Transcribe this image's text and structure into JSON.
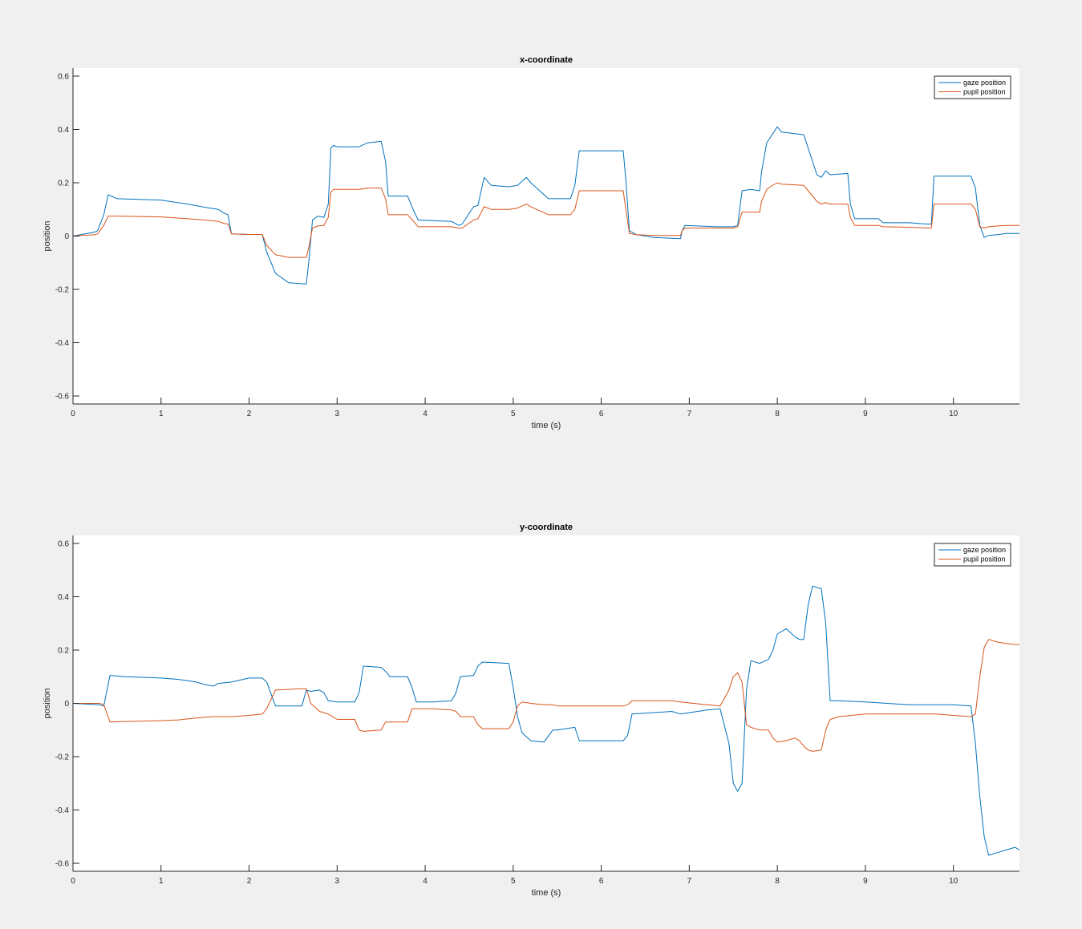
{
  "chart_data": [
    {
      "type": "line",
      "title": "x-coordinate",
      "xlabel": "time (s)",
      "ylabel": "position",
      "xlim": [
        0,
        10.75
      ],
      "ylim": [
        -0.63,
        0.63
      ],
      "xticks": [
        0,
        1,
        2,
        3,
        4,
        5,
        6,
        7,
        8,
        9,
        10
      ],
      "yticks": [
        -0.6,
        -0.4,
        -0.2,
        0,
        0.2,
        0.4,
        0.6
      ],
      "grid": false,
      "legend_position": "top-right",
      "series": [
        {
          "name": "gaze position",
          "color": "#0072bd",
          "x": [
            0,
            0.25,
            0.28,
            0.35,
            0.4,
            0.5,
            1.0,
            1.3,
            1.5,
            1.65,
            1.72,
            1.76,
            1.8,
            2.0,
            2.15,
            2.2,
            2.3,
            2.45,
            2.65,
            2.68,
            2.72,
            2.78,
            2.85,
            2.9,
            2.93,
            2.96,
            3.0,
            3.25,
            3.35,
            3.5,
            3.55,
            3.58,
            3.8,
            3.87,
            3.92,
            4.3,
            4.38,
            4.42,
            4.55,
            4.6,
            4.67,
            4.75,
            4.95,
            5.05,
            5.15,
            5.2,
            5.4,
            5.65,
            5.7,
            5.75,
            6.25,
            6.28,
            6.32,
            6.4,
            6.6,
            6.9,
            6.92,
            6.95,
            7.3,
            7.5,
            7.55,
            7.6,
            7.7,
            7.8,
            7.82,
            7.88,
            7.92,
            8.0,
            8.05,
            8.3,
            8.35,
            8.45,
            8.5,
            8.55,
            8.6,
            8.8,
            8.83,
            8.88,
            9.15,
            9.2,
            9.5,
            9.7,
            9.75,
            9.78,
            10.2,
            10.25,
            10.3,
            10.35,
            10.4,
            10.5,
            10.6,
            10.75
          ],
          "y": [
            0,
            0.015,
            0.02,
            0.08,
            0.155,
            0.14,
            0.135,
            0.12,
            0.108,
            0.1,
            0.085,
            0.08,
            0.008,
            0.006,
            0.006,
            -0.06,
            -0.14,
            -0.175,
            -0.18,
            -0.09,
            0.06,
            0.075,
            0.07,
            0.12,
            0.33,
            0.34,
            0.335,
            0.335,
            0.35,
            0.355,
            0.28,
            0.15,
            0.15,
            0.095,
            0.06,
            0.055,
            0.04,
            0.045,
            0.11,
            0.115,
            0.22,
            0.19,
            0.185,
            0.19,
            0.22,
            0.2,
            0.14,
            0.14,
            0.19,
            0.32,
            0.32,
            0.21,
            0.02,
            0.005,
            -0.005,
            -0.01,
            0.02,
            0.04,
            0.035,
            0.035,
            0.04,
            0.17,
            0.175,
            0.17,
            0.24,
            0.35,
            0.37,
            0.41,
            0.39,
            0.38,
            0.33,
            0.23,
            0.22,
            0.245,
            0.23,
            0.235,
            0.12,
            0.065,
            0.065,
            0.05,
            0.05,
            0.045,
            0.045,
            0.225,
            0.225,
            0.18,
            0.04,
            -0.005,
            0.002,
            0.005,
            0.01,
            0.01
          ]
        },
        {
          "name": "pupil position",
          "color": "#d95319",
          "x": [
            0,
            0.25,
            0.28,
            0.35,
            0.4,
            0.5,
            1.0,
            1.3,
            1.5,
            1.65,
            1.72,
            1.76,
            1.8,
            2.0,
            2.15,
            2.2,
            2.3,
            2.45,
            2.65,
            2.68,
            2.72,
            2.78,
            2.85,
            2.9,
            2.93,
            2.96,
            3.0,
            3.25,
            3.35,
            3.5,
            3.55,
            3.58,
            3.8,
            3.87,
            3.92,
            4.3,
            4.38,
            4.42,
            4.55,
            4.6,
            4.67,
            4.75,
            4.95,
            5.05,
            5.15,
            5.2,
            5.4,
            5.65,
            5.7,
            5.75,
            6.25,
            6.28,
            6.32,
            6.4,
            6.6,
            6.9,
            6.92,
            6.95,
            7.3,
            7.5,
            7.55,
            7.6,
            7.7,
            7.8,
            7.82,
            7.88,
            7.92,
            8.0,
            8.05,
            8.3,
            8.35,
            8.45,
            8.5,
            8.55,
            8.6,
            8.8,
            8.83,
            8.88,
            9.15,
            9.2,
            9.5,
            9.7,
            9.75,
            9.78,
            10.2,
            10.25,
            10.3,
            10.35,
            10.4,
            10.5,
            10.6,
            10.75
          ],
          "y": [
            0,
            0.005,
            0.008,
            0.04,
            0.075,
            0.075,
            0.072,
            0.065,
            0.06,
            0.055,
            0.047,
            0.045,
            0.008,
            0.006,
            0.006,
            -0.035,
            -0.07,
            -0.08,
            -0.08,
            -0.04,
            0.03,
            0.038,
            0.04,
            0.07,
            0.165,
            0.175,
            0.175,
            0.175,
            0.18,
            0.18,
            0.14,
            0.08,
            0.08,
            0.055,
            0.035,
            0.035,
            0.03,
            0.03,
            0.06,
            0.065,
            0.11,
            0.1,
            0.1,
            0.105,
            0.12,
            0.11,
            0.08,
            0.08,
            0.1,
            0.17,
            0.17,
            0.1,
            0.01,
            0.005,
            0.002,
            0.002,
            0.02,
            0.03,
            0.03,
            0.03,
            0.035,
            0.09,
            0.09,
            0.09,
            0.13,
            0.175,
            0.185,
            0.2,
            0.195,
            0.19,
            0.17,
            0.13,
            0.12,
            0.125,
            0.12,
            0.12,
            0.07,
            0.04,
            0.04,
            0.035,
            0.033,
            0.03,
            0.03,
            0.12,
            0.12,
            0.1,
            0.035,
            0.03,
            0.035,
            0.038,
            0.04,
            0.04
          ]
        }
      ]
    },
    {
      "type": "line",
      "title": "y-coordinate",
      "xlabel": "time (s)",
      "ylabel": "position",
      "xlim": [
        0,
        10.75
      ],
      "ylim": [
        -0.63,
        0.63
      ],
      "xticks": [
        0,
        1,
        2,
        3,
        4,
        5,
        6,
        7,
        8,
        9,
        10
      ],
      "yticks": [
        -0.6,
        -0.4,
        -0.2,
        0,
        0.2,
        0.4,
        0.6
      ],
      "grid": false,
      "legend_position": "top-right",
      "series": [
        {
          "name": "gaze position",
          "color": "#0072bd",
          "x": [
            0,
            0.3,
            0.35,
            0.42,
            0.6,
            1.0,
            1.2,
            1.4,
            1.5,
            1.6,
            1.65,
            1.8,
            2.0,
            2.15,
            2.2,
            2.3,
            2.6,
            2.65,
            2.7,
            2.8,
            2.85,
            2.9,
            3.0,
            3.2,
            3.25,
            3.3,
            3.5,
            3.55,
            3.6,
            3.8,
            3.85,
            3.9,
            4.1,
            4.3,
            4.35,
            4.4,
            4.55,
            4.6,
            4.65,
            4.95,
            5.0,
            5.05,
            5.1,
            5.2,
            5.35,
            5.45,
            5.5,
            5.7,
            5.75,
            6.25,
            6.3,
            6.35,
            6.6,
            6.8,
            6.9,
            7.2,
            7.35,
            7.45,
            7.5,
            7.55,
            7.6,
            7.65,
            7.7,
            7.8,
            7.9,
            7.95,
            8.0,
            8.1,
            8.2,
            8.25,
            8.3,
            8.35,
            8.4,
            8.5,
            8.55,
            8.6,
            8.7,
            9.0,
            9.5,
            9.8,
            10.0,
            10.2,
            10.25,
            10.3,
            10.35,
            10.4,
            10.5,
            10.6,
            10.7,
            10.75
          ],
          "y": [
            0,
            -0.005,
            -0.01,
            0.105,
            0.1,
            0.095,
            0.09,
            0.08,
            0.07,
            0.065,
            0.075,
            0.08,
            0.095,
            0.095,
            0.08,
            -0.01,
            -0.01,
            0.05,
            0.045,
            0.05,
            0.04,
            0.01,
            0.005,
            0.005,
            0.04,
            0.14,
            0.135,
            0.12,
            0.1,
            0.1,
            0.06,
            0.005,
            0.005,
            0.01,
            0.04,
            0.1,
            0.105,
            0.14,
            0.155,
            0.15,
            0.06,
            -0.05,
            -0.11,
            -0.14,
            -0.145,
            -0.1,
            -0.1,
            -0.09,
            -0.14,
            -0.14,
            -0.12,
            -0.04,
            -0.035,
            -0.03,
            -0.04,
            -0.025,
            -0.02,
            -0.15,
            -0.3,
            -0.33,
            -0.3,
            0.05,
            0.16,
            0.15,
            0.165,
            0.2,
            0.26,
            0.28,
            0.25,
            0.24,
            0.24,
            0.37,
            0.44,
            0.43,
            0.3,
            0.01,
            0.01,
            0.005,
            -0.005,
            -0.005,
            -0.005,
            -0.01,
            -0.15,
            -0.35,
            -0.5,
            -0.57,
            -0.56,
            -0.55,
            -0.54,
            -0.55
          ]
        },
        {
          "name": "pupil position",
          "color": "#d95319",
          "x": [
            0,
            0.3,
            0.35,
            0.42,
            0.6,
            1.0,
            1.2,
            1.4,
            1.5,
            1.6,
            1.65,
            1.8,
            2.0,
            2.15,
            2.2,
            2.3,
            2.6,
            2.65,
            2.7,
            2.8,
            2.85,
            2.9,
            3.0,
            3.2,
            3.25,
            3.3,
            3.5,
            3.55,
            3.6,
            3.8,
            3.85,
            3.9,
            4.1,
            4.3,
            4.35,
            4.4,
            4.55,
            4.6,
            4.65,
            4.95,
            5.0,
            5.05,
            5.1,
            5.2,
            5.35,
            5.45,
            5.5,
            5.7,
            5.75,
            6.25,
            6.3,
            6.35,
            6.6,
            6.8,
            6.9,
            7.2,
            7.35,
            7.45,
            7.5,
            7.55,
            7.6,
            7.65,
            7.7,
            7.8,
            7.9,
            7.95,
            8.0,
            8.1,
            8.2,
            8.25,
            8.3,
            8.35,
            8.4,
            8.5,
            8.55,
            8.6,
            8.7,
            9.0,
            9.5,
            9.8,
            10.0,
            10.2,
            10.25,
            10.3,
            10.35,
            10.4,
            10.5,
            10.6,
            10.7,
            10.75
          ],
          "y": [
            0,
            0,
            -0.005,
            -0.07,
            -0.068,
            -0.065,
            -0.062,
            -0.055,
            -0.052,
            -0.05,
            -0.05,
            -0.05,
            -0.045,
            -0.04,
            -0.02,
            0.05,
            0.055,
            0.055,
            0.0,
            -0.03,
            -0.035,
            -0.04,
            -0.06,
            -0.06,
            -0.1,
            -0.105,
            -0.1,
            -0.07,
            -0.07,
            -0.07,
            -0.02,
            -0.02,
            -0.02,
            -0.025,
            -0.03,
            -0.05,
            -0.05,
            -0.08,
            -0.095,
            -0.095,
            -0.07,
            -0.01,
            0.005,
            0.0,
            -0.005,
            -0.005,
            -0.01,
            -0.01,
            -0.01,
            -0.01,
            -0.005,
            0.01,
            0.01,
            0.01,
            0.005,
            -0.005,
            -0.01,
            0.05,
            0.1,
            0.115,
            0.08,
            -0.08,
            -0.09,
            -0.1,
            -0.1,
            -0.13,
            -0.145,
            -0.14,
            -0.13,
            -0.14,
            -0.16,
            -0.175,
            -0.18,
            -0.175,
            -0.1,
            -0.06,
            -0.05,
            -0.04,
            -0.04,
            -0.04,
            -0.045,
            -0.05,
            -0.04,
            0.1,
            0.21,
            0.24,
            0.23,
            0.225,
            0.22,
            0.22
          ]
        }
      ]
    }
  ]
}
